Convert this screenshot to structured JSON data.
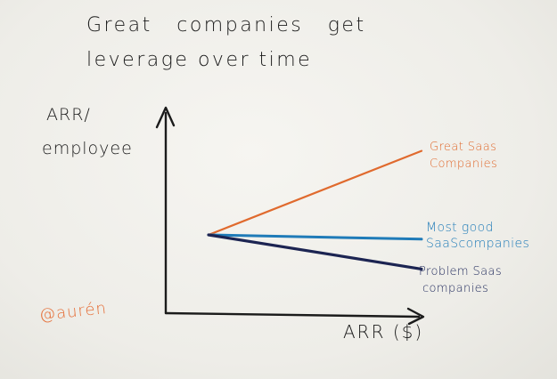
{
  "title": {
    "line1": "Great companies get",
    "line2": "leverage over time"
  },
  "chart_data": {
    "type": "line",
    "ylabel_lines": [
      "ARR/",
      "employee"
    ],
    "xlabel": "ARR ($)",
    "x": [
      0,
      1
    ],
    "series": [
      {
        "label_lines": [
          "Great Saas",
          "Companies"
        ],
        "values": [
          0,
          0.59
        ],
        "color": "#e06a2e"
      },
      {
        "label_lines": [
          "Most good",
          "SaaScompanies"
        ],
        "values": [
          0,
          -0.03
        ],
        "color": "#1f7bb8"
      },
      {
        "label_lines": [
          "Problem Saas",
          "companies"
        ],
        "values": [
          0,
          -0.24
        ],
        "color": "#1c2452"
      }
    ]
  },
  "signature": "@aurén"
}
